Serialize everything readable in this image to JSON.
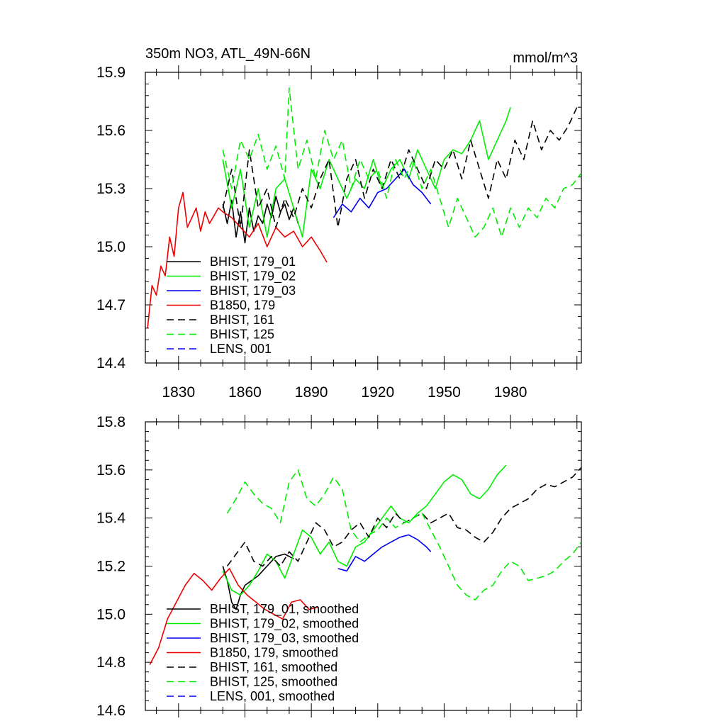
{
  "chart_data": [
    {
      "type": "line",
      "title": "350m NO3, ATL_49N-66N",
      "units": "mmol/m^3",
      "xlabel": "",
      "ylabel": "",
      "xlim": [
        1815,
        2012
      ],
      "ylim": [
        14.4,
        15.9
      ],
      "xticks": [
        1830,
        1860,
        1890,
        1920,
        1950,
        1980
      ],
      "yticks": [
        14.4,
        14.7,
        15.0,
        15.3,
        15.6,
        15.9
      ],
      "grid": false,
      "legend_position": "bottom-left",
      "series": [
        {
          "name": "BHIST, 179_01",
          "color": "#000000",
          "dash": "solid",
          "x": [
            1850,
            1852,
            1854,
            1856,
            1858,
            1860,
            1862,
            1864,
            1866,
            1868,
            1870,
            1872,
            1874,
            1876,
            1878,
            1880,
            1882,
            1884
          ],
          "y": [
            15.22,
            15.12,
            15.24,
            15.05,
            15.18,
            15.02,
            15.2,
            15.08,
            15.16,
            15.12,
            15.22,
            15.15,
            15.26,
            15.18,
            15.22,
            15.14,
            15.2,
            15.12
          ]
        },
        {
          "name": "BHIST, 179_02",
          "color": "#00ee00",
          "dash": "solid",
          "x": [
            1850,
            1854,
            1858,
            1862,
            1866,
            1870,
            1874,
            1878,
            1882,
            1886,
            1890,
            1894,
            1898,
            1902,
            1906,
            1910,
            1914,
            1918,
            1922,
            1926,
            1930,
            1934,
            1938,
            1942,
            1946,
            1950,
            1954,
            1958,
            1962,
            1966,
            1970,
            1974,
            1978,
            1980
          ],
          "y": [
            15.45,
            15.2,
            15.4,
            15.1,
            15.3,
            15.05,
            15.3,
            15.35,
            15.2,
            15.05,
            15.4,
            15.3,
            15.45,
            15.35,
            15.25,
            15.35,
            15.3,
            15.45,
            15.3,
            15.4,
            15.45,
            15.35,
            15.5,
            15.4,
            15.3,
            15.45,
            15.5,
            15.48,
            15.55,
            15.65,
            15.45,
            15.55,
            15.65,
            15.72
          ]
        },
        {
          "name": "BHIST, 179_03",
          "color": "#0000ee",
          "dash": "solid",
          "x": [
            1900,
            1904,
            1908,
            1912,
            1916,
            1920,
            1924,
            1928,
            1932,
            1936,
            1940,
            1944
          ],
          "y": [
            15.15,
            15.22,
            15.18,
            15.25,
            15.2,
            15.28,
            15.3,
            15.35,
            15.4,
            15.32,
            15.28,
            15.22
          ]
        },
        {
          "name": "B1850, 179",
          "color": "#ee0000",
          "dash": "solid",
          "x": [
            1816,
            1818,
            1820,
            1822,
            1824,
            1826,
            1828,
            1830,
            1832,
            1834,
            1836,
            1838,
            1840,
            1842,
            1844,
            1846,
            1848,
            1850,
            1854,
            1858,
            1862,
            1866,
            1870,
            1874,
            1878,
            1882,
            1886,
            1890,
            1894,
            1897
          ],
          "y": [
            14.58,
            14.8,
            14.75,
            14.9,
            14.85,
            15.05,
            14.95,
            15.2,
            15.28,
            15.1,
            15.15,
            15.2,
            15.08,
            15.18,
            15.12,
            15.16,
            15.2,
            15.18,
            15.15,
            15.1,
            15.05,
            15.12,
            15.0,
            15.1,
            15.05,
            15.08,
            15.0,
            15.05,
            14.98,
            14.92
          ]
        },
        {
          "name": "BHIST, 161",
          "color": "#000000",
          "dash": "dashed",
          "x": [
            1850,
            1854,
            1858,
            1862,
            1866,
            1870,
            1874,
            1878,
            1882,
            1886,
            1890,
            1894,
            1898,
            1902,
            1906,
            1910,
            1914,
            1918,
            1922,
            1926,
            1930,
            1934,
            1938,
            1942,
            1946,
            1950,
            1954,
            1958,
            1962,
            1966,
            1970,
            1974,
            1978,
            1982,
            1986,
            1990,
            1994,
            1998,
            2002,
            2006,
            2010
          ],
          "y": [
            15.2,
            15.4,
            15.1,
            15.5,
            15.2,
            15.3,
            15.1,
            15.25,
            15.15,
            15.3,
            15.2,
            15.35,
            15.45,
            15.1,
            15.35,
            15.45,
            15.25,
            15.4,
            15.3,
            15.45,
            15.35,
            15.5,
            15.4,
            15.3,
            15.45,
            15.4,
            15.5,
            15.35,
            15.55,
            15.4,
            15.25,
            15.45,
            15.35,
            15.55,
            15.45,
            15.65,
            15.5,
            15.6,
            15.55,
            15.62,
            15.72
          ]
        },
        {
          "name": "BHIST, 125",
          "color": "#00ee00",
          "dash": "dashed",
          "x": [
            1850,
            1854,
            1858,
            1862,
            1866,
            1870,
            1874,
            1878,
            1880,
            1884,
            1888,
            1892,
            1896,
            1900,
            1904,
            1908,
            1912,
            1916,
            1920,
            1924,
            1928,
            1932,
            1936,
            1940,
            1944,
            1948,
            1952,
            1956,
            1960,
            1964,
            1968,
            1972,
            1976,
            1980,
            1984,
            1988,
            1992,
            1996,
            2000,
            2004,
            2008,
            2012
          ],
          "y": [
            15.5,
            15.3,
            15.55,
            15.45,
            15.58,
            15.4,
            15.52,
            15.35,
            15.82,
            15.4,
            15.55,
            15.35,
            15.6,
            15.45,
            15.55,
            15.3,
            15.45,
            15.35,
            15.4,
            15.25,
            15.45,
            15.35,
            15.45,
            15.3,
            15.4,
            15.25,
            15.1,
            15.25,
            15.15,
            15.05,
            15.1,
            15.2,
            15.05,
            15.2,
            15.1,
            15.2,
            15.15,
            15.25,
            15.2,
            15.3,
            15.32,
            15.38
          ]
        },
        {
          "name": "LENS, 001",
          "color": "#0000ee",
          "dash": "dashed",
          "x": [],
          "y": []
        }
      ]
    },
    {
      "type": "line",
      "title": "",
      "xlabel": "",
      "ylabel": "",
      "xlim": [
        1815,
        2012
      ],
      "ylim": [
        14.6,
        15.8
      ],
      "yticks": [
        14.6,
        14.8,
        15.0,
        15.2,
        15.4,
        15.6,
        15.8
      ],
      "grid": false,
      "legend_position": "bottom-left",
      "series": [
        {
          "name": "BHIST, 179_01, smoothed",
          "color": "#000000",
          "dash": "solid",
          "x": [
            1850,
            1852,
            1854,
            1856,
            1858,
            1860,
            1863,
            1866,
            1870,
            1874,
            1878,
            1882
          ],
          "y": [
            15.2,
            15.14,
            15.05,
            15.02,
            15.08,
            15.12,
            15.14,
            15.16,
            15.2,
            15.24,
            15.25,
            15.23
          ]
        },
        {
          "name": "BHIST, 179_02, smoothed",
          "color": "#00ee00",
          "dash": "solid",
          "x": [
            1850,
            1854,
            1858,
            1862,
            1866,
            1870,
            1874,
            1878,
            1882,
            1886,
            1890,
            1894,
            1898,
            1902,
            1906,
            1910,
            1914,
            1918,
            1922,
            1926,
            1930,
            1934,
            1938,
            1942,
            1946,
            1950,
            1954,
            1958,
            1962,
            1966,
            1970,
            1974,
            1978
          ],
          "y": [
            15.18,
            15.1,
            15.08,
            15.12,
            15.18,
            15.25,
            15.22,
            15.15,
            15.25,
            15.35,
            15.32,
            15.25,
            15.3,
            15.22,
            15.2,
            15.28,
            15.3,
            15.35,
            15.4,
            15.45,
            15.4,
            15.38,
            15.42,
            15.45,
            15.5,
            15.55,
            15.58,
            15.56,
            15.5,
            15.48,
            15.52,
            15.58,
            15.62
          ]
        },
        {
          "name": "BHIST, 179_03, smoothed",
          "color": "#0000ee",
          "dash": "solid",
          "x": [
            1902,
            1906,
            1910,
            1914,
            1918,
            1922,
            1926,
            1930,
            1934,
            1938,
            1942,
            1944
          ],
          "y": [
            15.19,
            15.18,
            15.24,
            15.22,
            15.25,
            15.28,
            15.3,
            15.32,
            15.33,
            15.31,
            15.28,
            15.26
          ]
        },
        {
          "name": "B1850, 179, smoothed",
          "color": "#ee0000",
          "dash": "solid",
          "x": [
            1817,
            1821,
            1825,
            1829,
            1833,
            1837,
            1841,
            1845,
            1849,
            1853,
            1857,
            1861,
            1865,
            1869,
            1873,
            1877,
            1881,
            1885,
            1889,
            1893
          ],
          "y": [
            14.79,
            14.86,
            14.98,
            15.05,
            15.12,
            15.17,
            15.14,
            15.1,
            15.15,
            15.19,
            15.12,
            15.08,
            15.05,
            15.02,
            15.0,
            14.98,
            15.05,
            15.06,
            15.02,
            15.03
          ]
        },
        {
          "name": "BHIST, 161, smoothed",
          "color": "#000000",
          "dash": "dashed",
          "x": [
            1852,
            1856,
            1860,
            1864,
            1868,
            1872,
            1876,
            1880,
            1884,
            1888,
            1892,
            1896,
            1900,
            1904,
            1908,
            1912,
            1916,
            1920,
            1924,
            1928,
            1932,
            1936,
            1940,
            1944,
            1948,
            1952,
            1956,
            1960,
            1964,
            1968,
            1972,
            1976,
            1980,
            1984,
            1988,
            1992,
            1996,
            2000,
            2004,
            2008,
            2012
          ],
          "y": [
            15.2,
            15.25,
            15.3,
            15.22,
            15.2,
            15.24,
            15.2,
            15.26,
            15.22,
            15.3,
            15.38,
            15.35,
            15.28,
            15.3,
            15.35,
            15.38,
            15.32,
            15.4,
            15.36,
            15.42,
            15.38,
            15.4,
            15.42,
            15.38,
            15.4,
            15.42,
            15.36,
            15.35,
            15.32,
            15.3,
            15.34,
            15.4,
            15.44,
            15.46,
            15.48,
            15.52,
            15.54,
            15.53,
            15.55,
            15.57,
            15.61
          ]
        },
        {
          "name": "BHIST, 125, smoothed",
          "color": "#00ee00",
          "dash": "dashed",
          "x": [
            1852,
            1856,
            1860,
            1864,
            1868,
            1872,
            1876,
            1880,
            1884,
            1888,
            1892,
            1896,
            1900,
            1904,
            1908,
            1912,
            1916,
            1920,
            1924,
            1928,
            1932,
            1936,
            1940,
            1944,
            1948,
            1952,
            1956,
            1960,
            1964,
            1968,
            1972,
            1976,
            1980,
            1984,
            1988,
            1992,
            1996,
            2000,
            2004,
            2008,
            2012
          ],
          "y": [
            15.42,
            15.48,
            15.55,
            15.5,
            15.46,
            15.44,
            15.38,
            15.55,
            15.6,
            15.48,
            15.45,
            15.5,
            15.57,
            15.52,
            15.35,
            15.3,
            15.33,
            15.35,
            15.4,
            15.36,
            15.38,
            15.4,
            15.42,
            15.35,
            15.28,
            15.2,
            15.12,
            15.08,
            15.06,
            15.1,
            15.12,
            15.18,
            15.22,
            15.2,
            15.14,
            15.15,
            15.16,
            15.18,
            15.22,
            15.25,
            15.3
          ]
        },
        {
          "name": "LENS, 001, smoothed",
          "color": "#0000ee",
          "dash": "dashed",
          "x": [],
          "y": []
        }
      ]
    }
  ]
}
